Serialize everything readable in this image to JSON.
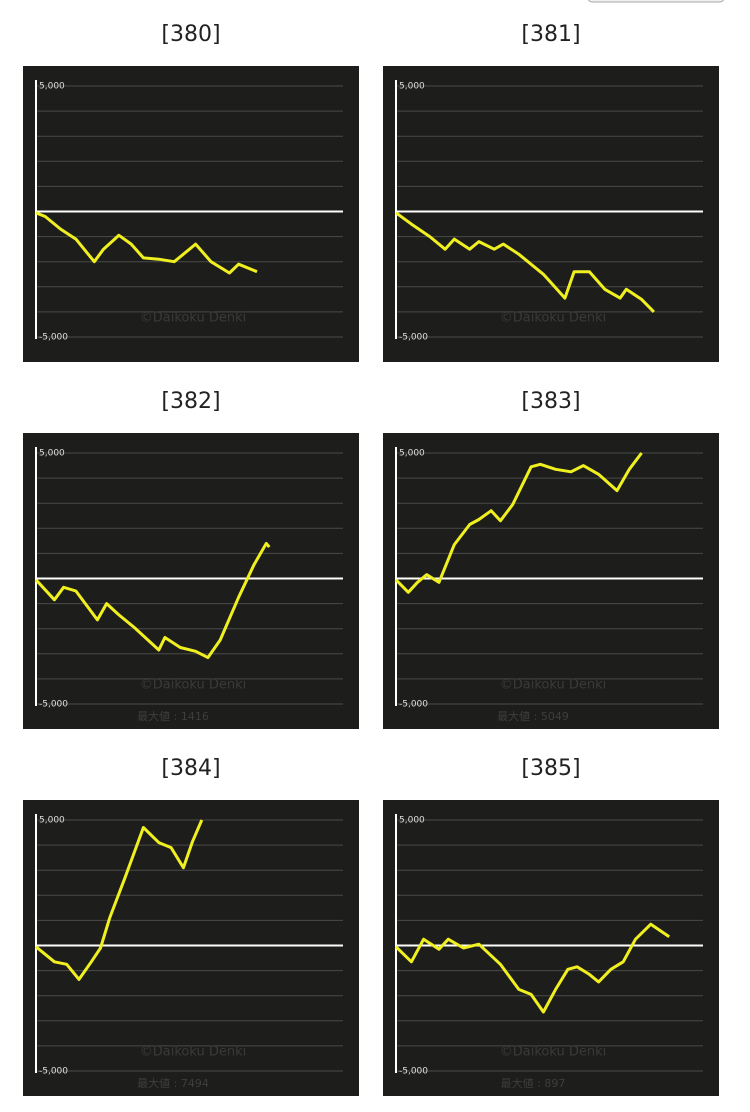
{
  "chart_data": [
    {
      "type": "line",
      "title": "[380]",
      "watermark": "©Daikoku Denki",
      "ylim": [
        -5000,
        5000
      ],
      "xlim": [
        0,
        100
      ],
      "yticks": [
        {
          "value": 5000,
          "label": "5,000"
        },
        {
          "value": -5000,
          "label": "-5,000"
        }
      ],
      "ygrid": [
        4000,
        3000,
        2000,
        1000,
        0,
        -1000,
        -2000,
        -3000,
        -4000
      ],
      "series": [
        {
          "color": "#f0f020",
          "x": [
            0,
            3,
            8,
            13,
            19,
            22,
            27,
            31,
            35,
            40,
            45,
            48,
            52,
            57,
            63,
            66,
            72
          ],
          "values": [
            -50,
            -200,
            -700,
            -1100,
            -2000,
            -1500,
            -950,
            -1300,
            -1850,
            -1900,
            -2000,
            -1700,
            -1300,
            -2000,
            -2450,
            -2100,
            -2400
          ]
        }
      ]
    },
    {
      "type": "line",
      "title": "[381]",
      "watermark": "©Daikoku Denki",
      "ylim": [
        -5000,
        5000
      ],
      "xlim": [
        0,
        100
      ],
      "yticks": [
        {
          "value": 5000,
          "label": "5,000"
        },
        {
          "value": -5000,
          "label": "-5,000"
        }
      ],
      "ygrid": [
        4000,
        3000,
        2000,
        1000,
        0,
        -1000,
        -2000,
        -3000,
        -4000
      ],
      "series": [
        {
          "color": "#f0f020",
          "x": [
            0,
            5,
            11,
            16,
            19,
            24,
            27,
            32,
            35,
            40,
            48,
            55,
            58,
            63,
            68,
            73,
            75,
            80,
            84
          ],
          "values": [
            -50,
            -500,
            -1000,
            -1500,
            -1100,
            -1500,
            -1200,
            -1500,
            -1300,
            -1700,
            -2500,
            -3450,
            -2400,
            -2400,
            -3100,
            -3450,
            -3100,
            -3500,
            -4000
          ]
        }
      ]
    },
    {
      "type": "line",
      "title": "[382]",
      "watermark": "©Daikoku Denki",
      "annotation": "最大値 : 1416",
      "ylim": [
        -5000,
        5000
      ],
      "xlim": [
        0,
        100
      ],
      "yticks": [
        {
          "value": 5000,
          "label": "5,000"
        },
        {
          "value": -5000,
          "label": "-5,000"
        }
      ],
      "ygrid": [
        4000,
        3000,
        2000,
        1000,
        0,
        -1000,
        -2000,
        -3000,
        -4000
      ],
      "series": [
        {
          "color": "#f0f020",
          "x": [
            0,
            3,
            6,
            9,
            13,
            20,
            23,
            27,
            32,
            40,
            42,
            47,
            52,
            56,
            60,
            66,
            71,
            75,
            76
          ],
          "values": [
            -50,
            -450,
            -850,
            -350,
            -500,
            -1650,
            -1000,
            -1450,
            -1950,
            -2850,
            -2350,
            -2750,
            -2900,
            -3150,
            -2450,
            -750,
            550,
            1400,
            1250
          ]
        }
      ]
    },
    {
      "type": "line",
      "title": "[383]",
      "watermark": "©Daikoku Denki",
      "annotation": "最大値 : 5049",
      "ylim": [
        -5000,
        5000
      ],
      "xlim": [
        0,
        100
      ],
      "yticks": [
        {
          "value": 5000,
          "label": "5,000"
        },
        {
          "value": -5000,
          "label": "-5,000"
        }
      ],
      "ygrid": [
        4000,
        3000,
        2000,
        1000,
        0,
        -1000,
        -2000,
        -3000,
        -4000
      ],
      "series": [
        {
          "color": "#f0f020",
          "x": [
            0,
            4,
            7,
            10,
            14,
            19,
            24,
            27,
            31,
            34,
            38,
            44,
            47,
            52,
            57,
            61,
            66,
            72,
            76,
            80
          ],
          "values": [
            -50,
            -550,
            -150,
            150,
            -150,
            1350,
            2150,
            2350,
            2700,
            2300,
            2950,
            4450,
            4550,
            4350,
            4250,
            4500,
            4150,
            3500,
            4350,
            5000
          ]
        }
      ]
    },
    {
      "type": "line",
      "title": "[384]",
      "watermark": "©Daikoku Denki",
      "annotation": "最大値 : 7494",
      "ylim": [
        -5000,
        5000
      ],
      "xlim": [
        0,
        100
      ],
      "yticks": [
        {
          "value": 5000,
          "label": "5,000"
        },
        {
          "value": -5000,
          "label": "-5,000"
        }
      ],
      "ygrid": [
        4000,
        3000,
        2000,
        1000,
        0,
        -1000,
        -2000,
        -3000,
        -4000
      ],
      "series": [
        {
          "color": "#f0f020",
          "x": [
            0,
            3,
            6,
            10,
            14,
            18,
            21,
            24,
            29,
            35,
            40,
            44,
            48,
            51,
            54
          ],
          "values": [
            -50,
            -350,
            -650,
            -750,
            -1350,
            -650,
            -100,
            1100,
            2700,
            4700,
            4100,
            3900,
            3100,
            4150,
            5000
          ]
        }
      ]
    },
    {
      "type": "line",
      "title": "[385]",
      "watermark": "©Daikoku Denki",
      "annotation": "最大値 : 897",
      "ylim": [
        -5000,
        5000
      ],
      "xlim": [
        0,
        100
      ],
      "yticks": [
        {
          "value": 5000,
          "label": "5,000"
        },
        {
          "value": -5000,
          "label": "-5,000"
        }
      ],
      "ygrid": [
        4000,
        3000,
        2000,
        1000,
        0,
        -1000,
        -2000,
        -3000,
        -4000
      ],
      "series": [
        {
          "color": "#f0f020",
          "x": [
            0,
            5,
            9,
            14,
            17,
            22,
            27,
            34,
            40,
            44,
            48,
            52,
            56,
            59,
            63,
            66,
            70,
            74,
            78,
            83,
            89
          ],
          "values": [
            -50,
            -650,
            250,
            -150,
            250,
            -100,
            50,
            -750,
            -1750,
            -1950,
            -2650,
            -1750,
            -950,
            -850,
            -1150,
            -1450,
            -950,
            -650,
            250,
            850,
            350
          ]
        }
      ]
    }
  ]
}
